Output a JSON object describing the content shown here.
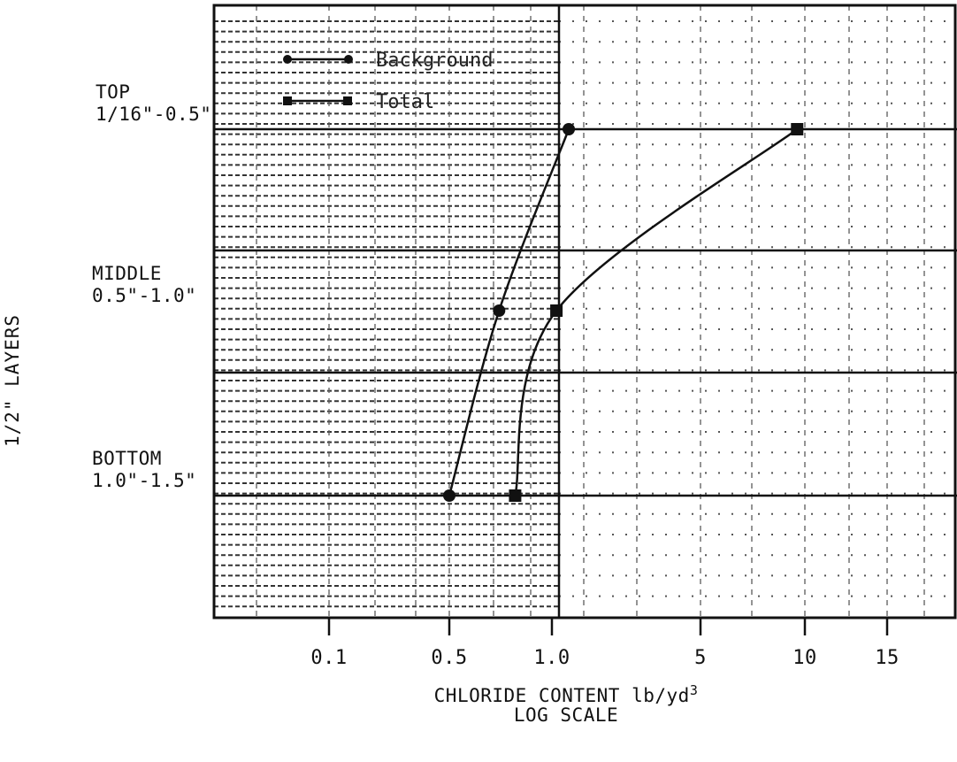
{
  "chart_data": {
    "type": "line",
    "title": "",
    "ylabel": "1/2\" LAYERS",
    "xlabel": "CHLORIDE CONTENT lb/yd",
    "xlabel_superscript": "3",
    "xlabel_line2": "LOG SCALE",
    "x_scale": "log",
    "xlim": [
      0.02,
      30
    ],
    "x_ticks": [
      "0.1",
      "0.5",
      "1.0",
      "5",
      "10",
      "15"
    ],
    "y_categories": [
      {
        "name": "TOP",
        "range": "1/16\"-0.5\""
      },
      {
        "name": "MIDDLE",
        "range": "0.5\"-1.0\""
      },
      {
        "name": "BOTTOM",
        "range": "1.0\"-1.5\""
      }
    ],
    "series": [
      {
        "name": "Background",
        "marker": "circle",
        "color": "#111111",
        "points": [
          {
            "layer": "TOP",
            "x": 1.2
          },
          {
            "layer": "MIDDLE",
            "x": 0.7
          },
          {
            "layer": "BOTTOM",
            "x": 0.5
          }
        ]
      },
      {
        "name": "Total",
        "marker": "square",
        "color": "#111111",
        "points": [
          {
            "layer": "TOP",
            "x": 9.5
          },
          {
            "layer": "MIDDLE",
            "x": 1.05
          },
          {
            "layer": "BOTTOM",
            "x": 0.78
          }
        ]
      }
    ],
    "grid": true,
    "legend": "top-left"
  }
}
